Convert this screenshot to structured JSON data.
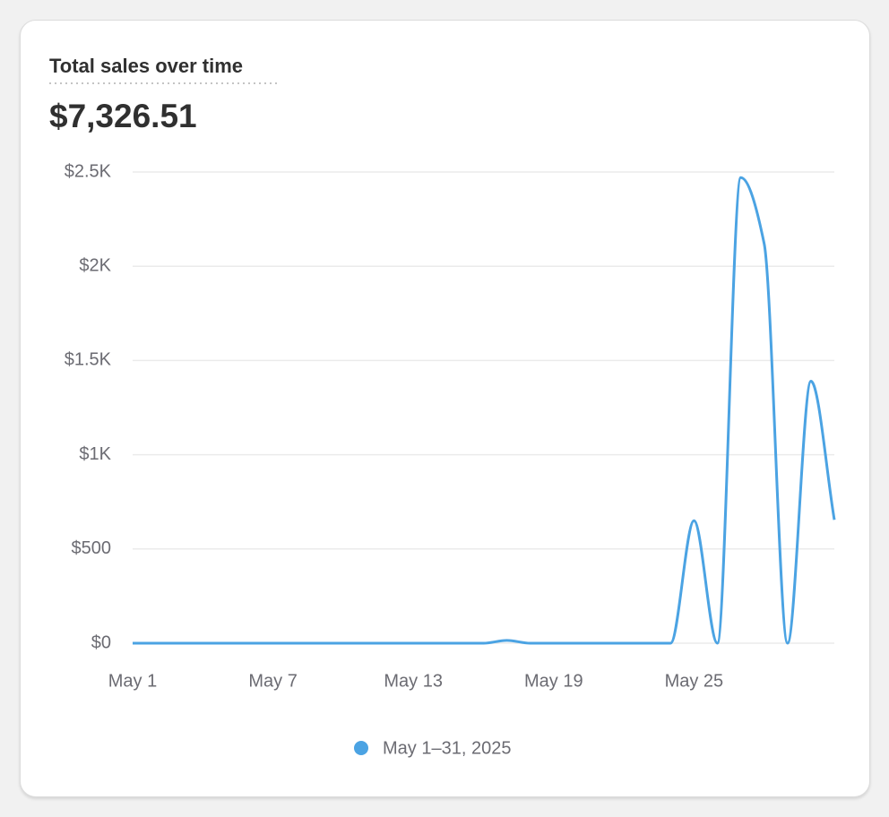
{
  "chart_data": {
    "type": "line",
    "title": "Total sales over time",
    "total": "$7,326.51",
    "categories": [
      "May 1",
      null,
      null,
      null,
      null,
      null,
      "May 7",
      null,
      null,
      null,
      null,
      null,
      "May 13",
      null,
      null,
      null,
      null,
      null,
      "May 19",
      null,
      null,
      null,
      null,
      null,
      "May 25",
      null,
      null,
      null,
      null,
      null,
      null
    ],
    "series": [
      {
        "name": "May 1–31, 2025",
        "color": "#4ba3e3",
        "values": [
          0,
          0,
          0,
          0,
          0,
          0,
          0,
          0,
          0,
          0,
          0,
          0,
          0,
          0,
          0,
          0,
          15,
          0,
          0,
          0,
          0,
          0,
          0,
          0,
          650,
          0,
          2470,
          2120,
          0,
          1390,
          655
        ]
      }
    ],
    "ylim": [
      0,
      2500
    ],
    "yticks": [
      {
        "value": 0,
        "label": "$0"
      },
      {
        "value": 500,
        "label": "$500"
      },
      {
        "value": 1000,
        "label": "$1K"
      },
      {
        "value": 1500,
        "label": "$1.5K"
      },
      {
        "value": 2000,
        "label": "$2K"
      },
      {
        "value": 2500,
        "label": "$2.5K"
      }
    ],
    "grid": true,
    "legend": "bottom"
  }
}
